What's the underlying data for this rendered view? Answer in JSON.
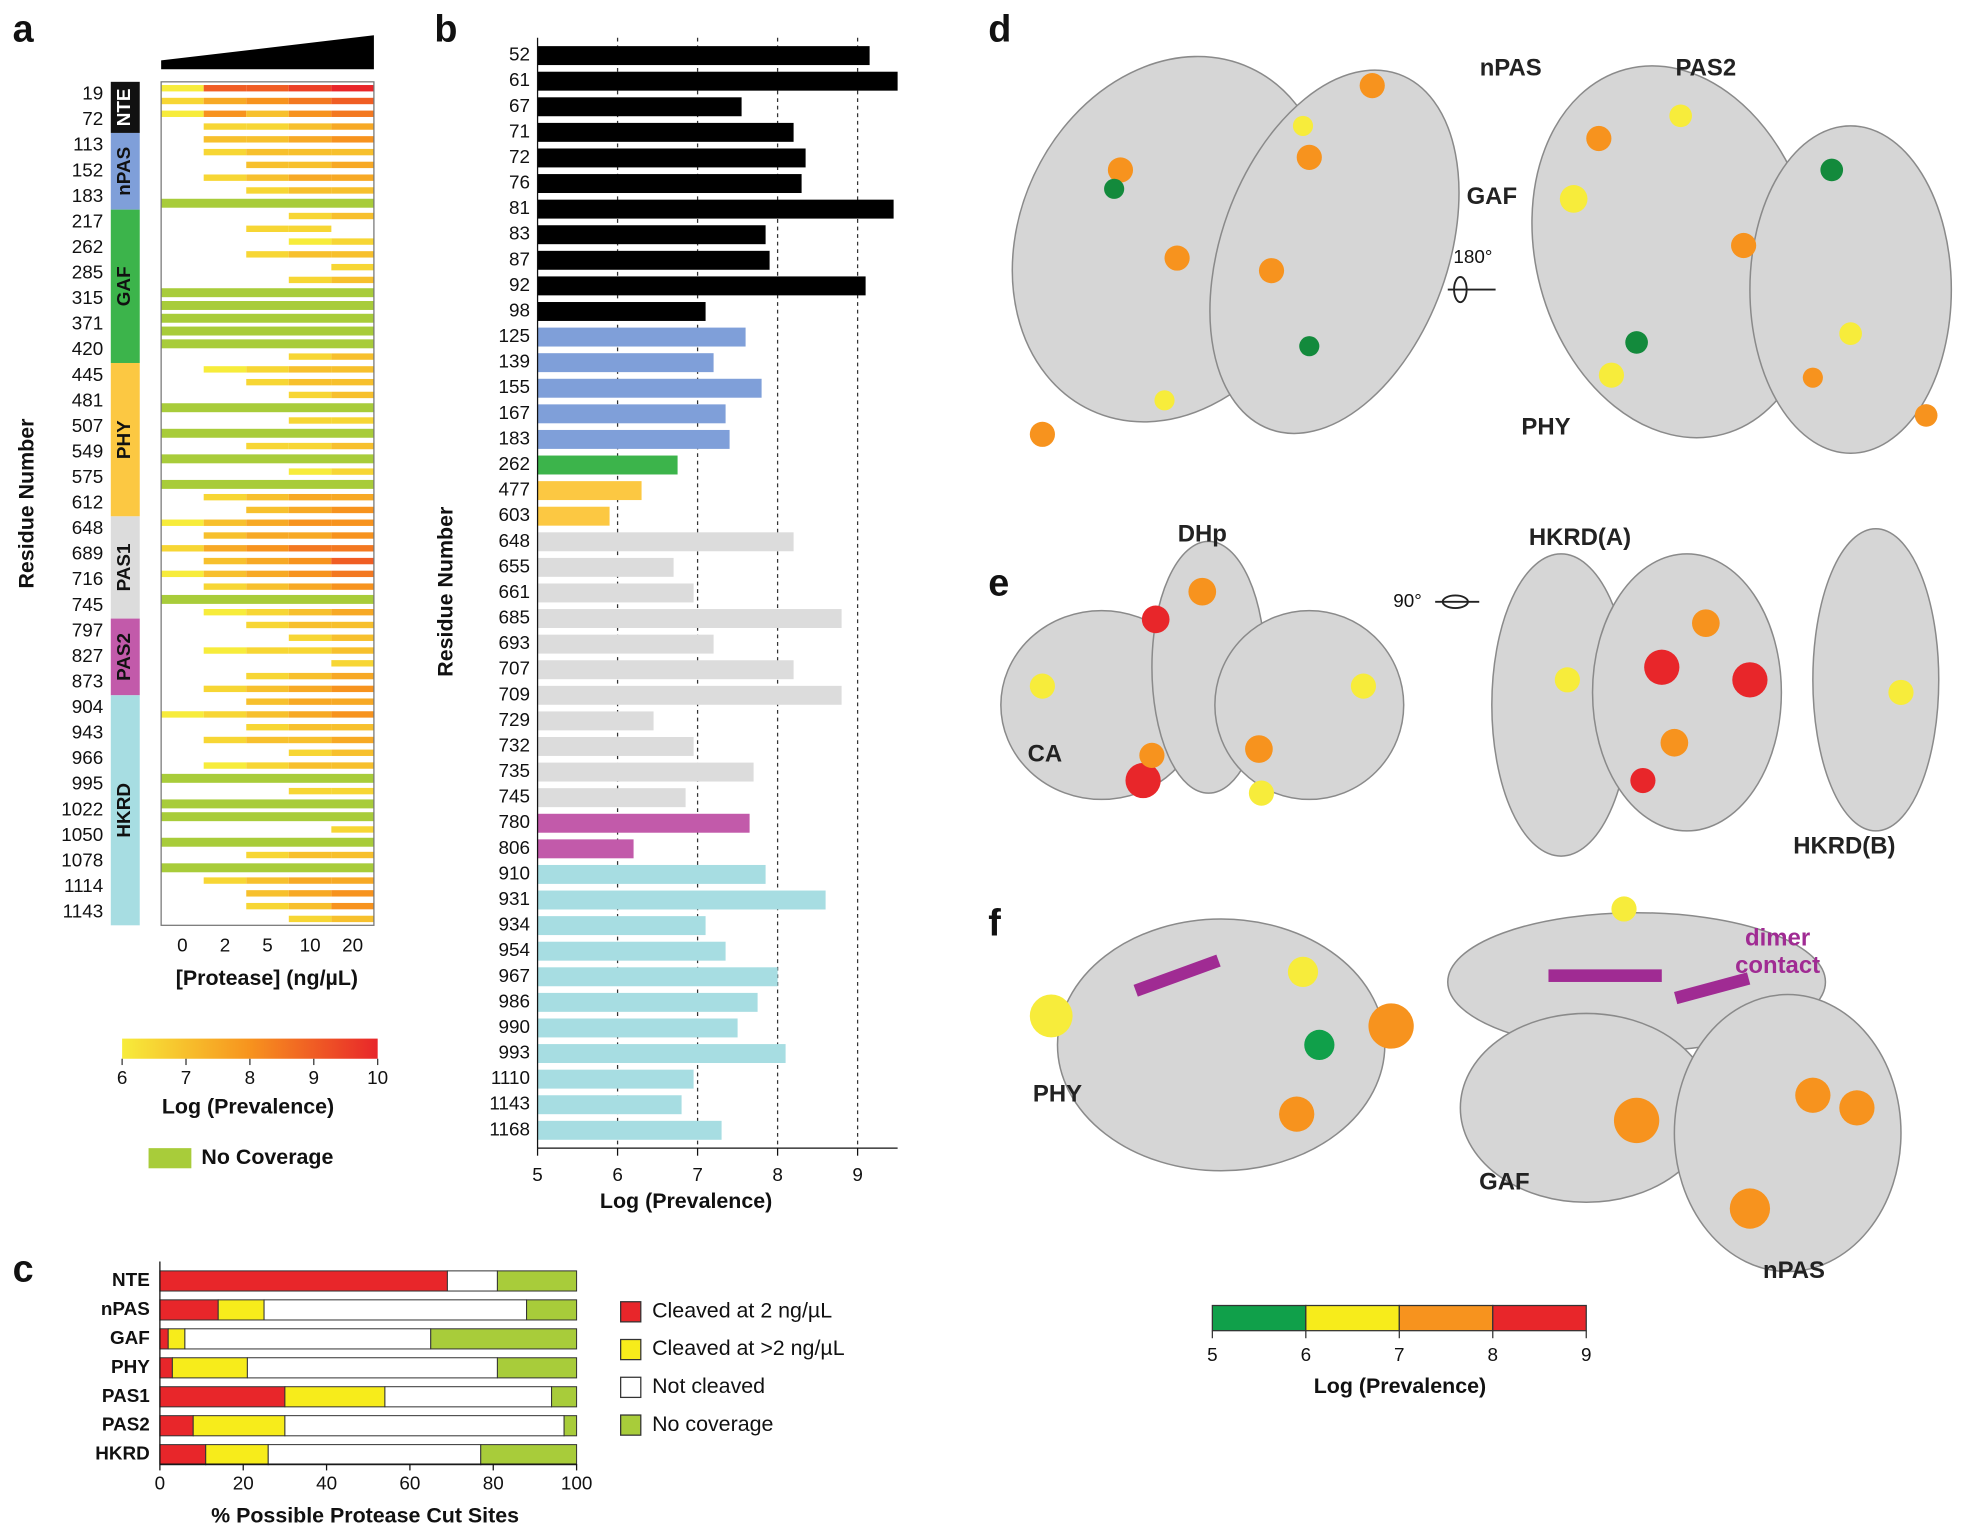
{
  "panel_letters": [
    "a",
    "b",
    "c",
    "d",
    "e",
    "f"
  ],
  "structures": {
    "d": [
      "nPAS",
      "PAS2",
      "GAF",
      "PHY",
      "180°"
    ],
    "e": [
      "DHp",
      "HKRD(A)",
      "CA",
      "HKRD(B)",
      "90°"
    ],
    "f": [
      "PHY",
      "dimer",
      "contact",
      "GAF",
      "nPAS"
    ]
  },
  "chart_data": [
    {
      "type": "heatmap",
      "categories": [
        "0",
        "2",
        "5",
        "10",
        "20"
      ],
      "xlabel": "[Protease] (ng/µL)",
      "ylabel": "Residue Number",
      "domains": [
        {
          "name": "NTE",
          "color": "#111111",
          "residues": [
            19,
            72
          ]
        },
        {
          "name": "nPAS",
          "color": "#7f9fd9",
          "residues": [
            113,
            152,
            183
          ]
        },
        {
          "name": "GAF",
          "color": "#3cb44b",
          "residues": [
            217,
            262,
            285,
            315,
            371,
            420
          ]
        },
        {
          "name": "PHY",
          "color": "#fcc842",
          "residues": [
            445,
            481,
            507,
            549,
            575,
            612
          ]
        },
        {
          "name": "PAS1",
          "color": "#dcdcdc",
          "residues": [
            648,
            689,
            716,
            745
          ]
        },
        {
          "name": "PAS2",
          "color": "#c25aaa",
          "residues": [
            797,
            827,
            873
          ]
        },
        {
          "name": "HKRD",
          "color": "#a7dde2",
          "residues": [
            904,
            943,
            966,
            995,
            1022,
            1050,
            1078,
            1114,
            1143
          ]
        }
      ],
      "rows": [
        [
          6,
          9,
          9,
          9.5,
          10
        ],
        [
          6.5,
          7.5,
          8,
          8.5,
          9
        ],
        [
          6,
          8,
          7,
          8,
          8.5
        ],
        [
          null,
          6.5,
          6.5,
          7,
          7.5
        ],
        [
          null,
          7,
          7,
          7.5,
          8
        ],
        [
          null,
          6.5,
          7,
          7,
          7
        ],
        [
          null,
          null,
          7,
          7,
          7.5
        ],
        [
          null,
          6.5,
          7,
          7.5,
          7.5
        ],
        [
          null,
          null,
          6.5,
          7,
          7
        ],
        null,
        [
          null,
          null,
          null,
          6.5,
          7
        ],
        [
          null,
          null,
          6.5,
          6.5,
          null
        ],
        [
          null,
          null,
          null,
          6,
          6.5
        ],
        [
          null,
          null,
          6.5,
          7,
          7
        ],
        [
          null,
          null,
          null,
          null,
          6.5
        ],
        [
          null,
          null,
          null,
          6.5,
          7
        ],
        null,
        null,
        null,
        null,
        null,
        [
          null,
          null,
          null,
          6.5,
          7
        ],
        [
          null,
          6,
          6.5,
          7,
          7
        ],
        [
          null,
          null,
          6.5,
          7,
          7
        ],
        [
          null,
          null,
          null,
          6.5,
          7
        ],
        null,
        [
          null,
          null,
          null,
          6.5,
          6.5
        ],
        null,
        [
          null,
          null,
          6.5,
          6.5,
          7
        ],
        null,
        [
          null,
          null,
          null,
          6,
          6.5
        ],
        null,
        [
          null,
          6.5,
          7,
          7.5,
          7.5
        ],
        [
          null,
          null,
          7,
          7.5,
          8
        ],
        [
          6,
          7,
          7.5,
          8,
          8
        ],
        [
          null,
          7,
          7.5,
          7.5,
          8
        ],
        [
          6.5,
          7.5,
          8,
          8.5,
          8.5
        ],
        [
          null,
          7,
          7.5,
          8,
          9
        ],
        [
          6,
          7,
          7.5,
          8,
          8.5
        ],
        [
          null,
          6.5,
          7,
          7.5,
          8
        ],
        null,
        [
          null,
          6,
          6.5,
          7,
          7.5
        ],
        [
          null,
          null,
          6.5,
          7,
          7
        ],
        [
          null,
          null,
          null,
          6.5,
          7
        ],
        [
          null,
          6,
          6.5,
          6.5,
          7
        ],
        [
          null,
          null,
          null,
          null,
          6.5
        ],
        [
          null,
          null,
          6.5,
          7,
          7.5
        ],
        [
          null,
          6.5,
          7,
          7.5,
          8
        ],
        [
          null,
          null,
          7,
          7.5,
          7.5
        ],
        [
          6,
          6.5,
          7,
          7.5,
          8
        ],
        [
          null,
          null,
          6.5,
          7,
          7
        ],
        [
          null,
          6.5,
          7,
          7,
          7.5
        ],
        [
          null,
          null,
          null,
          6.5,
          7
        ],
        [
          null,
          6,
          6.5,
          7,
          7
        ],
        null,
        [
          null,
          null,
          null,
          6.5,
          6.5
        ],
        null,
        null,
        [
          null,
          null,
          null,
          null,
          6.5
        ],
        null,
        [
          null,
          null,
          6.5,
          7,
          7
        ],
        null,
        [
          null,
          6.5,
          7,
          7.5,
          7.5
        ],
        [
          null,
          null,
          7,
          7.5,
          8
        ],
        [
          null,
          null,
          6.5,
          7,
          8
        ],
        [
          null,
          null,
          null,
          6.5,
          7
        ]
      ],
      "colorlim": [
        6,
        10
      ],
      "colorticks": [
        6,
        7,
        8,
        9,
        10
      ],
      "colors": [
        "#f7ec3b",
        "#f7931e",
        "#e8262a"
      ],
      "colorbar_label": "Log (Prevalence)",
      "no_coverage_label": "No Coverage",
      "no_coverage_color": "#a8cc3a"
    },
    {
      "type": "bar",
      "orientation": "horizontal",
      "categories": [
        52,
        61,
        67,
        71,
        72,
        76,
        81,
        83,
        87,
        92,
        98,
        125,
        139,
        155,
        167,
        183,
        262,
        477,
        603,
        648,
        655,
        661,
        685,
        693,
        707,
        709,
        729,
        732,
        735,
        745,
        780,
        806,
        910,
        931,
        934,
        954,
        967,
        986,
        990,
        993,
        1110,
        1143,
        1168
      ],
      "values": [
        9.15,
        9.5,
        7.55,
        8.2,
        8.35,
        8.3,
        9.45,
        7.85,
        7.9,
        9.1,
        7.1,
        7.6,
        7.2,
        7.8,
        7.35,
        7.4,
        6.75,
        6.3,
        5.9,
        8.2,
        6.7,
        6.95,
        8.8,
        7.2,
        8.2,
        8.8,
        6.45,
        6.95,
        7.7,
        6.85,
        7.65,
        6.2,
        7.85,
        8.6,
        7.1,
        7.35,
        8.0,
        7.75,
        7.5,
        8.1,
        6.95,
        6.8,
        7.3
      ],
      "colors": [
        "#000000",
        "#000000",
        "#000000",
        "#000000",
        "#000000",
        "#000000",
        "#000000",
        "#000000",
        "#000000",
        "#000000",
        "#000000",
        "#7f9fd9",
        "#7f9fd9",
        "#7f9fd9",
        "#7f9fd9",
        "#7f9fd9",
        "#3cb44b",
        "#fcc842",
        "#fcc842",
        "#dcdcdc",
        "#dcdcdc",
        "#dcdcdc",
        "#dcdcdc",
        "#dcdcdc",
        "#dcdcdc",
        "#dcdcdc",
        "#dcdcdc",
        "#dcdcdc",
        "#dcdcdc",
        "#dcdcdc",
        "#c25aaa",
        "#c25aaa",
        "#a7dde2",
        "#a7dde2",
        "#a7dde2",
        "#a7dde2",
        "#a7dde2",
        "#a7dde2",
        "#a7dde2",
        "#a7dde2",
        "#a7dde2",
        "#a7dde2",
        "#a7dde2"
      ],
      "xlim": [
        5,
        9.5
      ],
      "xticks": [
        5,
        6,
        7,
        8,
        9
      ],
      "grid": true,
      "xlabel": "Log (Prevalence)",
      "ylabel": "Residue Number"
    },
    {
      "type": "stacked_bar",
      "orientation": "horizontal",
      "categories": [
        "NTE",
        "nPAS",
        "GAF",
        "PHY",
        "PAS1",
        "PAS2",
        "HKRD"
      ],
      "series": [
        {
          "name": "Cleaved at 2 ng/µL",
          "color": "#e8262a",
          "values": [
            69,
            14,
            2,
            3,
            30,
            8,
            11
          ]
        },
        {
          "name": "Cleaved at >2 ng/µL",
          "color": "#f7ec1b",
          "values": [
            0,
            11,
            4,
            18,
            24,
            22,
            15
          ]
        },
        {
          "name": "Not cleaved",
          "color": "#ffffff",
          "values": [
            12,
            63,
            59,
            60,
            40,
            67,
            51
          ]
        },
        {
          "name": "No coverage",
          "color": "#a8cc3a",
          "values": [
            19,
            12,
            35,
            19,
            6,
            3,
            23
          ]
        }
      ],
      "xlim": [
        0,
        100
      ],
      "xticks": [
        0,
        20,
        40,
        60,
        80,
        100
      ],
      "xlabel": "% Possible Protease Cut Sites"
    },
    {
      "type": "colorscale",
      "bins": [
        5,
        6,
        7,
        8,
        9
      ],
      "colors": [
        "#10a04a",
        "#f7ec1b",
        "#f7931e",
        "#e8262a"
      ],
      "label": "Log (Prevalence)"
    }
  ]
}
